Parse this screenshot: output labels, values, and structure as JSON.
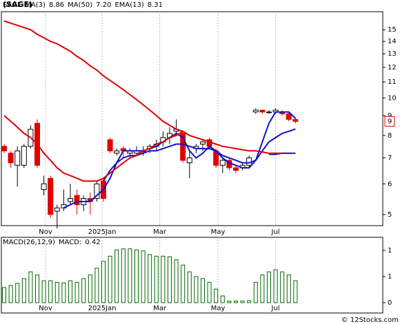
{
  "title": "(SAGE)",
  "watermark": "© 12Stocks.com",
  "chart_data": [
    {
      "type": "candlestick",
      "ticker": "SAGE",
      "log_scale": true,
      "up_color": "#ffffff",
      "down_color": "#e00000",
      "candles": {
        "open": [
          7.5,
          7.2,
          6.7,
          6.7,
          7.5,
          8.6,
          5.8,
          6.2,
          5.1,
          5.2,
          5.4,
          5.6,
          5.3,
          5.5,
          5.5,
          6.1,
          7.8,
          7.2,
          7.4,
          7.2,
          7.2,
          7.3,
          7.4,
          7.5,
          7.7,
          7.9,
          8.2,
          8.1,
          6.8,
          7.4,
          7.6,
          7.8,
          7.3,
          6.7,
          6.9,
          6.6,
          6.6,
          6.7,
          9.2,
          9.3,
          9.2,
          9.2,
          9.2,
          9.1,
          8.8
        ],
        "high": [
          7.6,
          7.3,
          7.5,
          7.6,
          8.5,
          8.8,
          6.3,
          6.3,
          5.3,
          5.8,
          6.0,
          5.8,
          5.6,
          5.7,
          6.1,
          6.2,
          7.9,
          7.4,
          7.5,
          7.4,
          7.5,
          7.5,
          7.6,
          7.8,
          8.2,
          8.4,
          8.8,
          8.2,
          7.3,
          7.6,
          7.8,
          7.9,
          7.4,
          7.0,
          7.0,
          6.7,
          6.8,
          7.1,
          9.4,
          9.3,
          9.3,
          9.4,
          9.3,
          9.2,
          8.9
        ],
        "low": [
          7.2,
          6.6,
          5.9,
          6.6,
          7.4,
          6.6,
          5.6,
          4.9,
          4.6,
          5.1,
          5.3,
          5.0,
          5.1,
          5.0,
          5.4,
          5.4,
          7.2,
          7.1,
          7.0,
          7.0,
          7.1,
          7.1,
          7.2,
          7.3,
          7.5,
          7.6,
          8.0,
          6.8,
          6.2,
          7.2,
          7.3,
          7.4,
          6.6,
          6.4,
          6.5,
          6.4,
          6.5,
          6.6,
          9.1,
          9.1,
          9.1,
          9.1,
          9.0,
          8.7,
          8.6
        ],
        "close": [
          7.3,
          6.8,
          7.3,
          7.5,
          8.3,
          6.7,
          6.0,
          5.0,
          5.2,
          5.3,
          5.5,
          5.3,
          5.5,
          5.4,
          6.0,
          5.5,
          7.3,
          7.3,
          7.3,
          7.3,
          7.3,
          7.3,
          7.5,
          7.6,
          7.9,
          8.1,
          8.3,
          6.9,
          7.0,
          7.5,
          7.7,
          7.5,
          6.7,
          6.9,
          6.6,
          6.5,
          6.7,
          7.0,
          9.3,
          9.2,
          9.2,
          9.3,
          9.1,
          8.8,
          8.7
        ]
      },
      "series": [
        {
          "name": "MA(3)",
          "last_label": "8.86",
          "color": "#1010c8",
          "values": [
            null,
            null,
            null,
            null,
            null,
            null,
            null,
            null,
            null,
            5.2,
            5.3,
            5.4,
            5.4,
            5.4,
            5.6,
            5.8,
            6.2,
            6.8,
            7.3,
            7.3,
            7.3,
            7.3,
            7.4,
            7.5,
            7.7,
            7.9,
            8.1,
            7.9,
            7.3,
            7.0,
            7.2,
            7.5,
            7.3,
            7.0,
            6.8,
            6.7,
            6.6,
            6.6,
            6.9,
            7.7,
            8.6,
            9.2,
            9.2,
            9.2,
            8.86
          ]
        },
        {
          "name": "MA(50)",
          "last_label": "7.20",
          "color": "#1010c8",
          "values": [
            null,
            null,
            null,
            null,
            null,
            null,
            null,
            null,
            null,
            null,
            null,
            null,
            null,
            null,
            null,
            null,
            null,
            null,
            null,
            null,
            null,
            null,
            null,
            null,
            null,
            null,
            null,
            null,
            null,
            null,
            null,
            null,
            null,
            null,
            null,
            null,
            null,
            null,
            null,
            null,
            7.15,
            7.15,
            7.2,
            7.2,
            7.2
          ]
        },
        {
          "name": "EMA(13)",
          "last_label": "8.31",
          "color": "#1010c8",
          "values": [
            null,
            null,
            null,
            null,
            null,
            null,
            null,
            null,
            null,
            null,
            null,
            null,
            null,
            null,
            null,
            6.1,
            6.5,
            6.8,
            7.0,
            7.1,
            7.1,
            7.2,
            7.3,
            7.3,
            7.4,
            7.5,
            7.6,
            7.6,
            7.5,
            7.4,
            7.4,
            7.4,
            7.3,
            7.1,
            7.0,
            6.9,
            6.8,
            6.8,
            6.9,
            7.3,
            7.7,
            7.9,
            8.1,
            8.2,
            8.31
          ]
        },
        {
          "color": "#e00000",
          "values": [
            15.8,
            15.6,
            15.4,
            15.2,
            15.0,
            14.6,
            14.3,
            14.0,
            13.8,
            13.5,
            13.2,
            12.8,
            12.5,
            12.1,
            11.8,
            11.4,
            11.1,
            10.8,
            10.5,
            10.2,
            9.9,
            9.6,
            9.3,
            9.0,
            8.7,
            8.5,
            8.3,
            8.2,
            8.0,
            7.9,
            7.8,
            7.7,
            7.6,
            7.5,
            7.45,
            7.4,
            7.35,
            7.3,
            7.3,
            7.25,
            7.2,
            7.2,
            7.2,
            null,
            null
          ]
        },
        {
          "color": "#e00000",
          "values": [
            9.0,
            8.7,
            8.4,
            8.1,
            7.9,
            7.6,
            7.2,
            6.9,
            6.6,
            6.4,
            6.3,
            6.2,
            6.1,
            6.1,
            6.1,
            6.2,
            6.4,
            6.6,
            6.8,
            7.0,
            7.1,
            7.3,
            7.4,
            7.6,
            7.7,
            7.9,
            8.0,
            8.2,
            null,
            null,
            null,
            null,
            null,
            null,
            null,
            null,
            null,
            null,
            null,
            null,
            null,
            null,
            null,
            null,
            null
          ]
        }
      ],
      "ylim": [
        4.68,
        16.7
      ],
      "yticks": [
        5,
        6,
        7,
        8,
        9,
        10,
        11,
        12,
        13,
        14,
        15
      ],
      "xticks": [
        {
          "value": 6.25,
          "label": "Nov"
        },
        {
          "value": 14.8,
          "label": "2025Jan"
        },
        {
          "value": 23.5,
          "label": "Mar"
        },
        {
          "value": 32.3,
          "label": "May"
        },
        {
          "value": 41,
          "label": "Jul"
        }
      ],
      "last_price": {
        "value": 8.7,
        "label": "9"
      }
    },
    {
      "type": "bar",
      "name": "MACD(26,12,9)",
      "label": "MACD:",
      "last_label": "0.42",
      "color": "#006600",
      "values": [
        0.29,
        0.33,
        0.37,
        0.46,
        0.59,
        0.53,
        0.42,
        0.42,
        0.39,
        0.38,
        0.42,
        0.39,
        0.46,
        0.53,
        0.66,
        0.79,
        0.89,
        1.01,
        1.03,
        1.03,
        1.01,
        0.99,
        0.92,
        0.89,
        0.89,
        0.88,
        0.82,
        0.72,
        0.59,
        0.5,
        0.46,
        0.39,
        0.26,
        0.13,
        0.03,
        0.03,
        0.03,
        0.04,
        0.39,
        0.53,
        0.59,
        0.63,
        0.59,
        0.53,
        0.42
      ],
      "ylim": [
        0,
        1.25
      ],
      "yticks": [
        {
          "value": 1,
          "label": "1"
        },
        {
          "value": 0.5,
          "label": "1"
        },
        0
      ],
      "xticks": [
        {
          "value": 6.25,
          "label": "Nov"
        },
        {
          "value": 14.8,
          "label": "2025Jan"
        },
        {
          "value": 23.5,
          "label": "Mar"
        },
        {
          "value": 32.3,
          "label": "May"
        },
        {
          "value": 41,
          "label": "Jul"
        }
      ]
    }
  ]
}
